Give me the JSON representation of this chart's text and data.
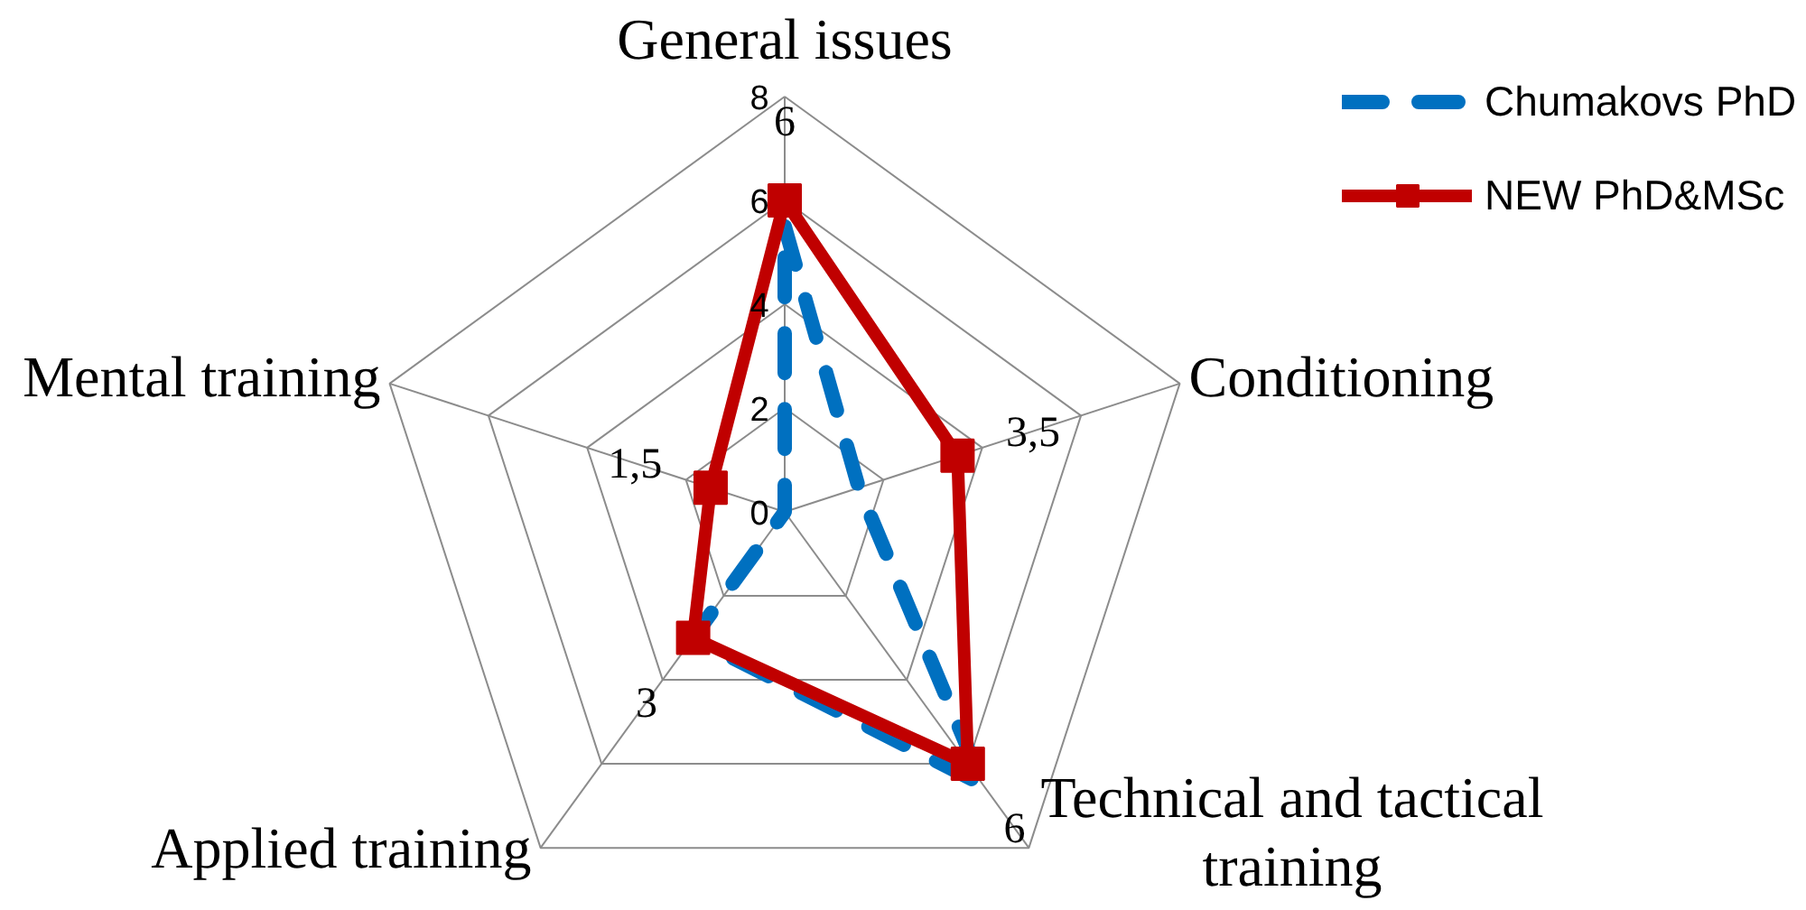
{
  "chart_data": {
    "type": "radar",
    "categories": [
      "General issues",
      "Conditioning",
      "Technical and tactical training",
      "Applied training",
      "Mental training"
    ],
    "ylim": [
      0,
      8
    ],
    "yticks": [
      0,
      2,
      4,
      6,
      8
    ],
    "grid": true,
    "legend": "top right",
    "series": [
      {
        "name": "Chumakovs PhD",
        "color": "#0070c0",
        "values": [
          5.5,
          1.5,
          6.5,
          3,
          0
        ],
        "line_style": "dashed",
        "marker": "none"
      },
      {
        "name": "NEW PhD&MSc",
        "color": "#c00000",
        "values": [
          6,
          3.5,
          6,
          3,
          1.5
        ],
        "value_labels": [
          "6",
          "3,5",
          "6",
          "3",
          "1,5"
        ],
        "line_style": "solid",
        "marker": "square"
      }
    ]
  }
}
